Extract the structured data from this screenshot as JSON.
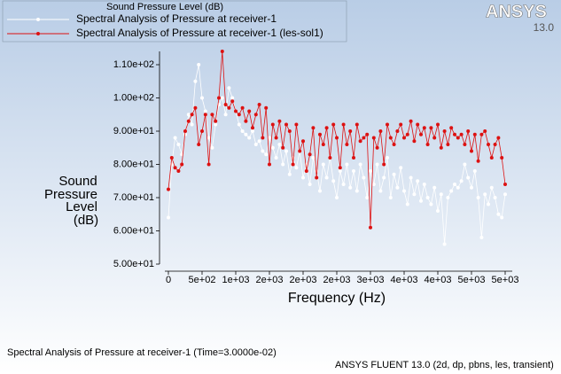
{
  "chart_data": {
    "type": "line",
    "title": "Sound Pressure Level (dB)",
    "ylabel": [
      "Sound",
      "Pressure",
      "Level",
      "(dB)"
    ],
    "xlabel": "Frequency (Hz)",
    "footer": "Spectral Analysis of Pressure at receiver-1  (Time=3.0000e-02)",
    "product": "ANSYS FLUENT 13.0 (2d, dp, pbns, les, transient)",
    "logo": "ANSYS",
    "version": "13.0",
    "x": [
      0,
      50,
      100,
      150,
      200,
      250,
      300,
      350,
      400,
      450,
      500,
      550,
      600,
      650,
      700,
      750,
      800,
      850,
      900,
      950,
      1000,
      1050,
      1100,
      1150,
      1200,
      1250,
      1300,
      1350,
      1400,
      1450,
      1500,
      1550,
      1600,
      1650,
      1700,
      1750,
      1800,
      1850,
      1900,
      1950,
      2000,
      2050,
      2100,
      2150,
      2200,
      2250,
      2300,
      2350,
      2400,
      2450,
      2500,
      2550,
      2600,
      2650,
      2700,
      2750,
      2800,
      2850,
      2900,
      2950,
      3000,
      3050,
      3100,
      3150,
      3200,
      3250,
      3300,
      3350,
      3400,
      3450,
      3500,
      3550,
      3600,
      3650,
      3700,
      3750,
      3800,
      3850,
      3900,
      3950,
      4000,
      4050,
      4100,
      4150,
      4200,
      4250,
      4300,
      4350,
      4400,
      4450,
      4500,
      4550,
      4600,
      4650,
      4700,
      4750,
      4800,
      4850,
      4900,
      4950,
      5000
    ],
    "series": [
      {
        "name": "Spectral Analysis of Pressure at receiver-1",
        "color": "#ffffff",
        "values": [
          64,
          80,
          88,
          86,
          83,
          89,
          95,
          92,
          105,
          110,
          100,
          96,
          88,
          85,
          92,
          98,
          100,
          95,
          103,
          100,
          96,
          92,
          90,
          89,
          88,
          90,
          86,
          87,
          84,
          83,
          88,
          85,
          82,
          86,
          80,
          84,
          77,
          82,
          79,
          84,
          76,
          80,
          74,
          82,
          78,
          72,
          80,
          76,
          82,
          75,
          70,
          78,
          74,
          80,
          73,
          78,
          72,
          80,
          76,
          70,
          78,
          74,
          80,
          72,
          76,
          82,
          70,
          77,
          73,
          79,
          72,
          68,
          76,
          71,
          75,
          69,
          74,
          70,
          68,
          73,
          66,
          71,
          56,
          70,
          72,
          74,
          73,
          75,
          80,
          76,
          73,
          78,
          70,
          58,
          71,
          68,
          73,
          70,
          65,
          64,
          71
        ]
      },
      {
        "name": "Spectral Analysis of Pressure at receiver-1 (les-sol1)",
        "color": "#dd1111",
        "values": [
          72.5,
          82,
          79,
          78,
          80,
          90,
          93,
          95,
          97,
          86,
          90,
          95,
          80,
          95,
          93,
          100,
          114,
          98,
          97,
          99,
          96,
          95,
          97,
          93,
          96,
          91,
          95,
          98,
          88,
          97,
          80,
          92,
          88,
          93,
          85,
          92,
          90,
          80,
          92,
          84,
          87,
          78,
          83,
          91,
          76,
          89,
          86,
          91,
          82,
          92,
          88,
          79,
          92,
          86,
          90,
          82,
          92,
          87,
          88,
          89,
          61,
          88,
          85,
          90,
          80,
          92,
          88,
          86,
          90,
          92,
          88,
          89,
          93,
          87,
          92,
          89,
          91,
          86,
          91,
          88,
          92,
          85,
          90,
          86,
          91,
          89,
          88,
          89,
          86,
          90,
          84,
          89,
          81,
          89,
          90,
          86,
          82,
          86,
          88,
          82,
          74
        ]
      }
    ],
    "xlim": [
      0,
      5000
    ],
    "xticks": [
      0,
      {
        "value": 500,
        "label": "5e+02"
      },
      {
        "value": 1000,
        "label": "1e+03"
      },
      {
        "value": 1500,
        "label": "2e+03"
      },
      {
        "value": 2000,
        "label": "2e+03"
      },
      {
        "value": 2500,
        "label": "2e+03"
      },
      {
        "value": 3000,
        "label": "3e+03"
      },
      {
        "value": 3500,
        "label": "4e+03"
      },
      {
        "value": 4000,
        "label": "4e+03"
      },
      {
        "value": 4500,
        "label": "5e+03"
      },
      {
        "value": 5000,
        "label": "5e+03"
      }
    ],
    "ylim": [
      50,
      114
    ],
    "yticks": [
      {
        "value": 50,
        "label": "5.00e+01"
      },
      {
        "value": 60,
        "label": "6.00e+01"
      },
      {
        "value": 70,
        "label": "7.00e+01"
      },
      {
        "value": 80,
        "label": "8.00e+01"
      },
      {
        "value": 90,
        "label": "9.00e+01"
      },
      {
        "value": 100,
        "label": "1.00e+02"
      },
      {
        "value": 110,
        "label": "1.10e+02"
      }
    ]
  }
}
